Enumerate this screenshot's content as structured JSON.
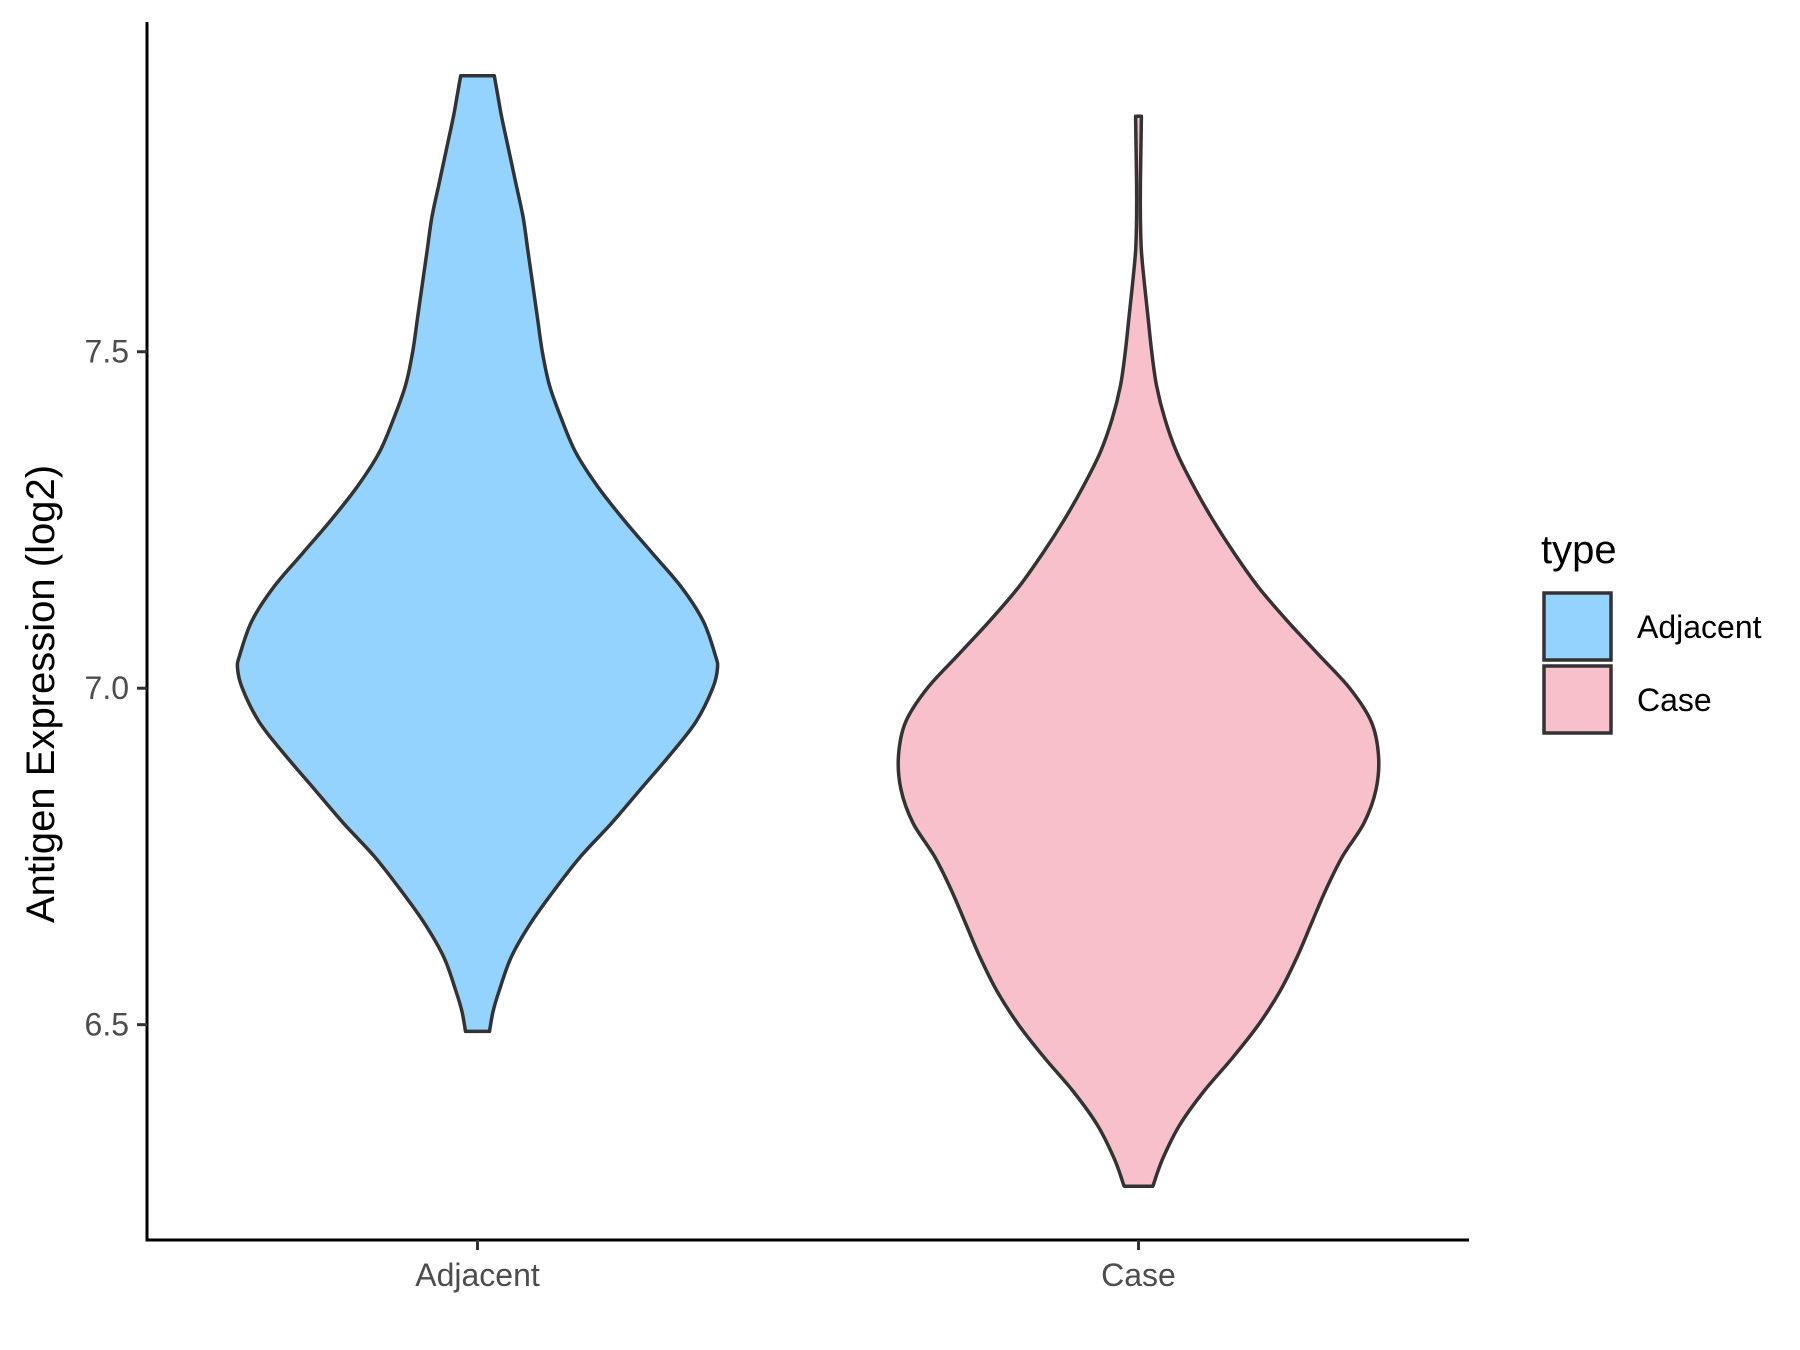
{
  "chart_data": {
    "type": "violin",
    "title": "",
    "xlabel": "",
    "ylabel": "Antigen Expression (log2)",
    "categories": [
      "Adjacent",
      "Case"
    ],
    "y_ticks": [
      {
        "value": 6.5,
        "label": "6.5"
      },
      {
        "value": 7.0,
        "label": "7.0"
      },
      {
        "value": 7.5,
        "label": "7.5"
      }
    ],
    "ylim": [
      6.18,
      7.99
    ],
    "grid": false,
    "legend": {
      "title": "type",
      "placement": "right",
      "entries": [
        {
          "label": "Adjacent",
          "color": "#93D3FE"
        },
        {
          "label": "Case",
          "color": "#F7C0CB"
        }
      ]
    },
    "series": [
      {
        "category": "Adjacent",
        "color": "#93D3FE",
        "min": 6.49,
        "max": 7.91,
        "density_half_width": [
          [
            6.49,
            0.05
          ],
          [
            6.52,
            0.065
          ],
          [
            6.55,
            0.09
          ],
          [
            6.6,
            0.14
          ],
          [
            6.65,
            0.22
          ],
          [
            6.7,
            0.32
          ],
          [
            6.75,
            0.43
          ],
          [
            6.8,
            0.56
          ],
          [
            6.85,
            0.68
          ],
          [
            6.9,
            0.8
          ],
          [
            6.95,
            0.91
          ],
          [
            7.0,
            0.98
          ],
          [
            7.03,
            1.0
          ],
          [
            7.05,
            0.99
          ],
          [
            7.1,
            0.94
          ],
          [
            7.15,
            0.85
          ],
          [
            7.2,
            0.73
          ],
          [
            7.25,
            0.61
          ],
          [
            7.3,
            0.5
          ],
          [
            7.35,
            0.41
          ],
          [
            7.4,
            0.35
          ],
          [
            7.45,
            0.3
          ],
          [
            7.5,
            0.27
          ],
          [
            7.55,
            0.25
          ],
          [
            7.6,
            0.23
          ],
          [
            7.65,
            0.21
          ],
          [
            7.7,
            0.19
          ],
          [
            7.75,
            0.16
          ],
          [
            7.8,
            0.13
          ],
          [
            7.85,
            0.1
          ],
          [
            7.88,
            0.085
          ],
          [
            7.91,
            0.07
          ]
        ]
      },
      {
        "category": "Case",
        "color": "#F7C0CB",
        "min": 6.26,
        "max": 7.85,
        "density_half_width": [
          [
            6.26,
            0.06
          ],
          [
            6.3,
            0.1
          ],
          [
            6.35,
            0.17
          ],
          [
            6.4,
            0.27
          ],
          [
            6.45,
            0.39
          ],
          [
            6.5,
            0.5
          ],
          [
            6.55,
            0.59
          ],
          [
            6.6,
            0.66
          ],
          [
            6.65,
            0.72
          ],
          [
            6.7,
            0.78
          ],
          [
            6.75,
            0.85
          ],
          [
            6.8,
            0.94
          ],
          [
            6.85,
            0.99
          ],
          [
            6.9,
            1.0
          ],
          [
            6.95,
            0.97
          ],
          [
            7.0,
            0.88
          ],
          [
            7.05,
            0.75
          ],
          [
            7.1,
            0.62
          ],
          [
            7.15,
            0.5
          ],
          [
            7.2,
            0.4
          ],
          [
            7.25,
            0.31
          ],
          [
            7.3,
            0.23
          ],
          [
            7.35,
            0.16
          ],
          [
            7.4,
            0.11
          ],
          [
            7.45,
            0.075
          ],
          [
            7.5,
            0.055
          ],
          [
            7.55,
            0.04
          ],
          [
            7.6,
            0.025
          ],
          [
            7.65,
            0.012
          ],
          [
            7.7,
            0.008
          ],
          [
            7.75,
            0.008
          ],
          [
            7.8,
            0.01
          ],
          [
            7.85,
            0.012
          ]
        ]
      }
    ]
  }
}
